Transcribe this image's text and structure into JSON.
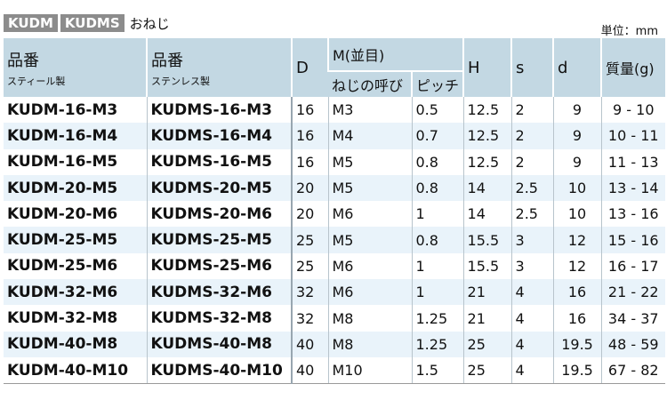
{
  "title": {
    "badges": [
      "KUDM",
      "KUDMS"
    ],
    "suffix": "おねじ"
  },
  "unit": "単位：mm",
  "headers": {
    "part_steel": "品番",
    "part_steel_sub": "スティール製",
    "part_stainless": "品番",
    "part_stainless_sub": "ステンレス製",
    "D": "D",
    "M": "M(並目)",
    "nominal": "ねじの呼び",
    "pitch": "ピッチ",
    "H": "H",
    "s": "s",
    "d": "d",
    "mass": "質量(g)"
  },
  "rows": [
    [
      "KUDM-16-M3",
      "KUDMS-16-M3",
      "16",
      "M3",
      "0.5",
      "12.5",
      "2",
      "9",
      "9 - 10"
    ],
    [
      "KUDM-16-M4",
      "KUDMS-16-M4",
      "16",
      "M4",
      "0.7",
      "12.5",
      "2",
      "9",
      "10 - 11"
    ],
    [
      "KUDM-16-M5",
      "KUDMS-16-M5",
      "16",
      "M5",
      "0.8",
      "12.5",
      "2",
      "9",
      "11 - 13"
    ],
    [
      "KUDM-20-M5",
      "KUDMS-20-M5",
      "20",
      "M5",
      "0.8",
      "14",
      "2.5",
      "10",
      "13 - 14"
    ],
    [
      "KUDM-20-M6",
      "KUDMS-20-M6",
      "20",
      "M6",
      "1",
      "14",
      "2.5",
      "10",
      "13 - 16"
    ],
    [
      "KUDM-25-M5",
      "KUDMS-25-M5",
      "25",
      "M5",
      "0.8",
      "15.5",
      "3",
      "12",
      "15 - 16"
    ],
    [
      "KUDM-25-M6",
      "KUDMS-25-M6",
      "25",
      "M6",
      "1",
      "15.5",
      "3",
      "12",
      "16 - 17"
    ],
    [
      "KUDM-32-M6",
      "KUDMS-32-M6",
      "32",
      "M6",
      "1",
      "21",
      "4",
      "16",
      "21 - 22"
    ],
    [
      "KUDM-32-M8",
      "KUDMS-32-M8",
      "32",
      "M8",
      "1.25",
      "21",
      "4",
      "16",
      "34 - 37"
    ],
    [
      "KUDM-40-M8",
      "KUDMS-40-M8",
      "40",
      "M8",
      "1.25",
      "25",
      "4",
      "19.5",
      "48 - 59"
    ],
    [
      "KUDM-40-M10",
      "KUDMS-40-M10",
      "40",
      "M10",
      "1.5",
      "25",
      "4",
      "19.5",
      "67 - 82"
    ]
  ]
}
